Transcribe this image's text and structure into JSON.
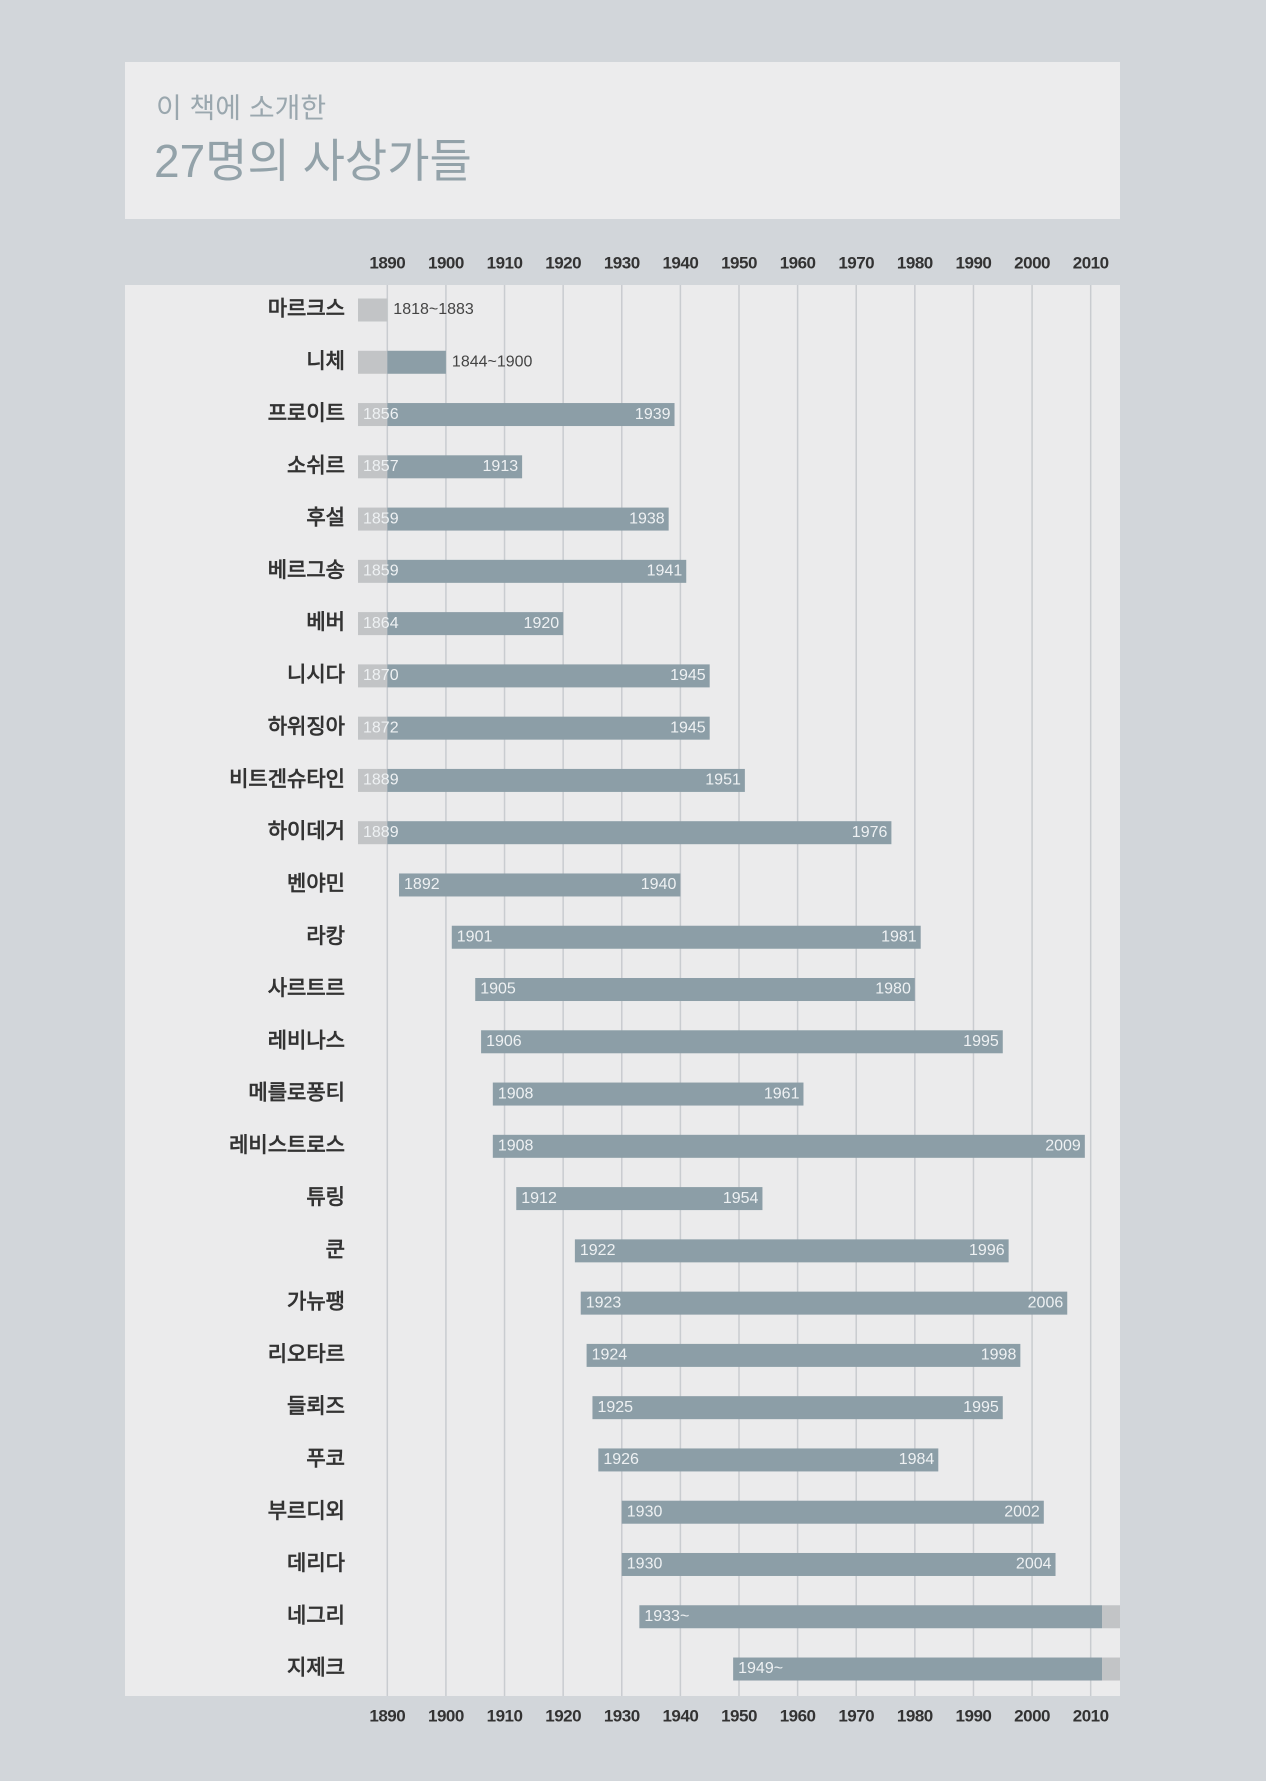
{
  "chart_data": {
    "type": "timeline",
    "subtitle": "이 책에 소개한",
    "title": "27명의 사상가들",
    "categories": [
      "마르크스",
      "니체",
      "프로이트",
      "소쉬르",
      "후설",
      "베르그송",
      "베버",
      "니시다",
      "하위징아",
      "비트겐슈타인",
      "하이데거",
      "벤야민",
      "라캉",
      "사르트르",
      "레비나스",
      "메를로퐁티",
      "레비스트로스",
      "튜링",
      "쿤",
      "가뉴팽",
      "리오타르",
      "들뢰즈",
      "푸코",
      "부르디외",
      "데리다",
      "네그리",
      "지제크"
    ],
    "start": [
      1818,
      1844,
      1856,
      1857,
      1859,
      1859,
      1864,
      1870,
      1872,
      1889,
      1889,
      1892,
      1901,
      1905,
      1906,
      1908,
      1908,
      1912,
      1922,
      1923,
      1924,
      1925,
      1926,
      1930,
      1930,
      1933,
      1949
    ],
    "end": [
      1883,
      1900,
      1939,
      1913,
      1938,
      1941,
      1920,
      1945,
      1945,
      1951,
      1976,
      1940,
      1981,
      1980,
      1995,
      1961,
      2009,
      1954,
      1996,
      2006,
      1998,
      1995,
      1984,
      2002,
      2004,
      null,
      null
    ],
    "range_labels": [
      "1818~1883",
      "1844~1900",
      null,
      null,
      null,
      null,
      null,
      null,
      null,
      null,
      null,
      null,
      null,
      null,
      null,
      null,
      null,
      null,
      null,
      null,
      null,
      null,
      null,
      null,
      null,
      "1933~",
      "1949~"
    ],
    "xlim": [
      1885,
      2015
    ],
    "xticks": [
      1890,
      1900,
      1910,
      1920,
      1930,
      1940,
      1950,
      1960,
      1970,
      1980,
      1990,
      2000,
      2010
    ],
    "color": "#8c9ea7",
    "out_of_range_color": "#c2c4c6",
    "grid": true
  }
}
